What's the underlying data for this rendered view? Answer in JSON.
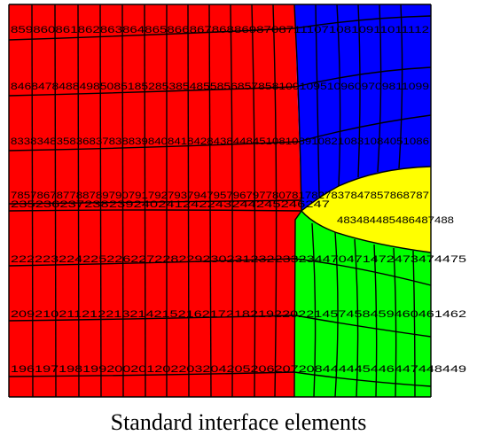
{
  "caption": "Standard interface elements",
  "colors": {
    "red": "#ff0000",
    "blue": "#0000ff",
    "yellow": "#ffff00",
    "green": "#00ff00",
    "mesh_line": "#000000"
  },
  "node_labels": [
    {
      "row": "y1",
      "text": "859860861862863864865866867868869870871110710810911011112"
    },
    {
      "row": "y2",
      "text": "8468478488498508518528538548558568578581091095109609709811099"
    },
    {
      "row": "y3",
      "text": "8338348358368378388398408418428438448451081089108210831084051086"
    },
    {
      "row": "y4",
      "text": "7857867877887897907917927937947957967977807817827837847857868787"
    },
    {
      "row": "y5",
      "text": "235236237238239240241242243244245246247"
    },
    {
      "row": "y6",
      "text": "483484485486487488"
    },
    {
      "row": "y7",
      "text": "222223224225226227228229230231232233234470471472473474475"
    },
    {
      "row": "y8",
      "text": "209210211212213214215216217218219220221457458459460461462"
    },
    {
      "row": "y9",
      "text": "196197198199200201202203204205206207208444445446447448449"
    }
  ]
}
